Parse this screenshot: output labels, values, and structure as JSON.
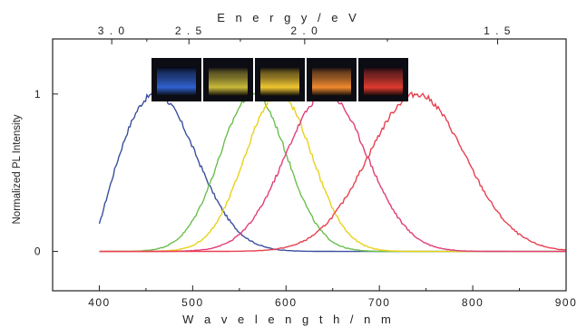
{
  "chart_data": {
    "type": "line",
    "xlabel": "W a v e l e n g t h / n m",
    "ylabel": "Normalized PL Intensity",
    "top_axis_label": "E n e r g y / e V",
    "xlim": [
      350,
      900
    ],
    "ylim": [
      -0.25,
      1.35
    ],
    "x_ticks": [
      400,
      500,
      600,
      700,
      800,
      900
    ],
    "y_ticks": [
      0,
      1
    ],
    "top_ticks": [
      3.0,
      2.5,
      2.0,
      1.5
    ],
    "top_tick_labels": [
      "3 . 0",
      "2 . 5",
      "2 . 0",
      "1 . 5"
    ],
    "grid": false,
    "series": [
      {
        "color": "#3b4f9e",
        "peak": 460,
        "sigma": 44,
        "start": 400,
        "end": 900,
        "x": [
          400,
          410,
          420,
          440,
          460,
          480,
          500,
          520,
          540,
          560,
          580,
          600,
          620
        ],
        "y": [
          0.17,
          0.55,
          0.78,
          0.95,
          1.0,
          0.93,
          0.72,
          0.5,
          0.35,
          0.2,
          0.06,
          0.01,
          0.0
        ]
      },
      {
        "color": "#6cbf4f",
        "peak": 565,
        "sigma": 36,
        "start": 400,
        "end": 900,
        "x": [
          480,
          500,
          520,
          540,
          560,
          565,
          580,
          600,
          620,
          640,
          680,
          720
        ],
        "y": [
          0.0,
          0.1,
          0.4,
          0.75,
          0.98,
          1.0,
          0.95,
          0.7,
          0.4,
          0.2,
          0.05,
          0.01
        ]
      },
      {
        "color": "#e8d21a",
        "peak": 592,
        "sigma": 36,
        "start": 400,
        "end": 900,
        "x": [
          500,
          520,
          540,
          560,
          580,
          592,
          600,
          620,
          640,
          660,
          700,
          740
        ],
        "y": [
          0.01,
          0.12,
          0.4,
          0.75,
          0.96,
          1.0,
          0.97,
          0.8,
          0.5,
          0.25,
          0.06,
          0.01
        ]
      },
      {
        "color": "#e23d7c",
        "peak": 643,
        "sigma": 44,
        "start": 400,
        "end": 900,
        "x": [
          520,
          560,
          600,
          620,
          643,
          660,
          680,
          700,
          740,
          780
        ],
        "y": [
          0.01,
          0.12,
          0.62,
          0.85,
          1.0,
          0.97,
          0.75,
          0.5,
          0.17,
          0.03
        ]
      },
      {
        "color": "#e84050",
        "peak": 740,
        "sigma": 52,
        "start": 400,
        "end": 900,
        "x": [
          600,
          640,
          680,
          700,
          720,
          740,
          760,
          800,
          840,
          860,
          870
        ],
        "y": [
          0.01,
          0.12,
          0.5,
          0.75,
          0.93,
          1.0,
          0.98,
          0.65,
          0.22,
          0.05,
          0.0
        ]
      }
    ],
    "inset_photos": [
      {
        "color": "#2f62d0"
      },
      {
        "color": "#c9b93a"
      },
      {
        "color": "#f0c630"
      },
      {
        "color": "#f08a2e"
      },
      {
        "color": "#e03a2e"
      }
    ]
  }
}
